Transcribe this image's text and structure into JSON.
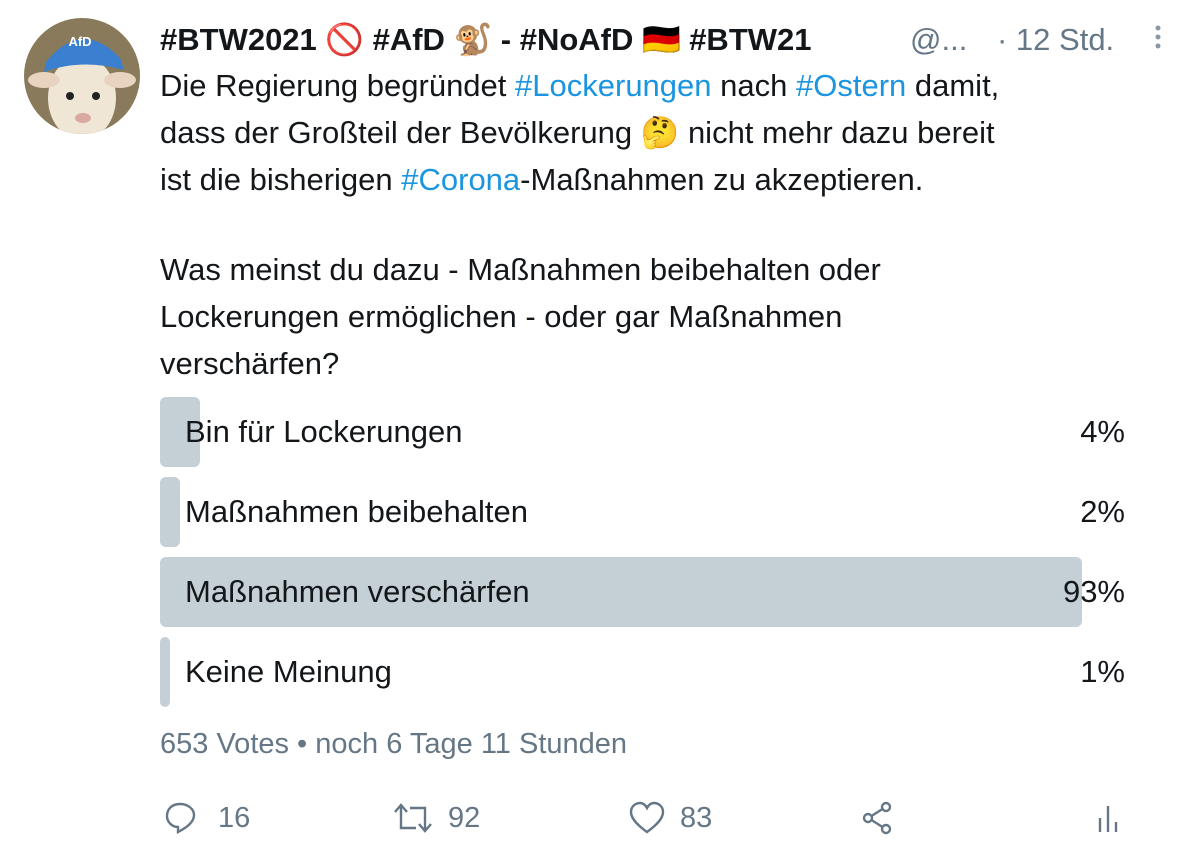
{
  "tweet": {
    "avatar_badge": "AfD",
    "display_name": "#BTW2021 🚫 #AfD 🐒 - #NoAfD 🇩🇪 #BTW21",
    "handle": "@...",
    "time": "· 12 Std.",
    "lines": [
      [
        "Die Regierung begründet ",
        "#Lockerungen",
        " nach ",
        "#Ostern",
        " damit,"
      ],
      [
        "dass der Großteil der Bevölkerung 🤔 nicht mehr dazu bereit"
      ],
      [
        "ist die bisherigen ",
        "#Corona",
        "-Maßnahmen zu akzeptieren."
      ],
      [
        "Was meinst du dazu - Maßnahmen beibehalten oder"
      ],
      [
        "Lockerungen ermöglichen - oder gar Maßnahmen"
      ],
      [
        "verschärfen?"
      ]
    ],
    "poll": {
      "options": [
        {
          "label": "Bin für Lockerungen",
          "percent": 4,
          "percent_label": "4%"
        },
        {
          "label": "Maßnahmen beibehalten",
          "percent": 2,
          "percent_label": "2%"
        },
        {
          "label": "Maßnahmen verschärfen",
          "percent": 93,
          "percent_label": "93%"
        },
        {
          "label": "Keine Meinung",
          "percent": 1,
          "percent_label": "1%"
        }
      ],
      "footer": "653 Votes • noch 6 Tage 11 Stunden"
    },
    "actions": {
      "replies": 16,
      "retweets": 92,
      "likes": 83
    }
  }
}
